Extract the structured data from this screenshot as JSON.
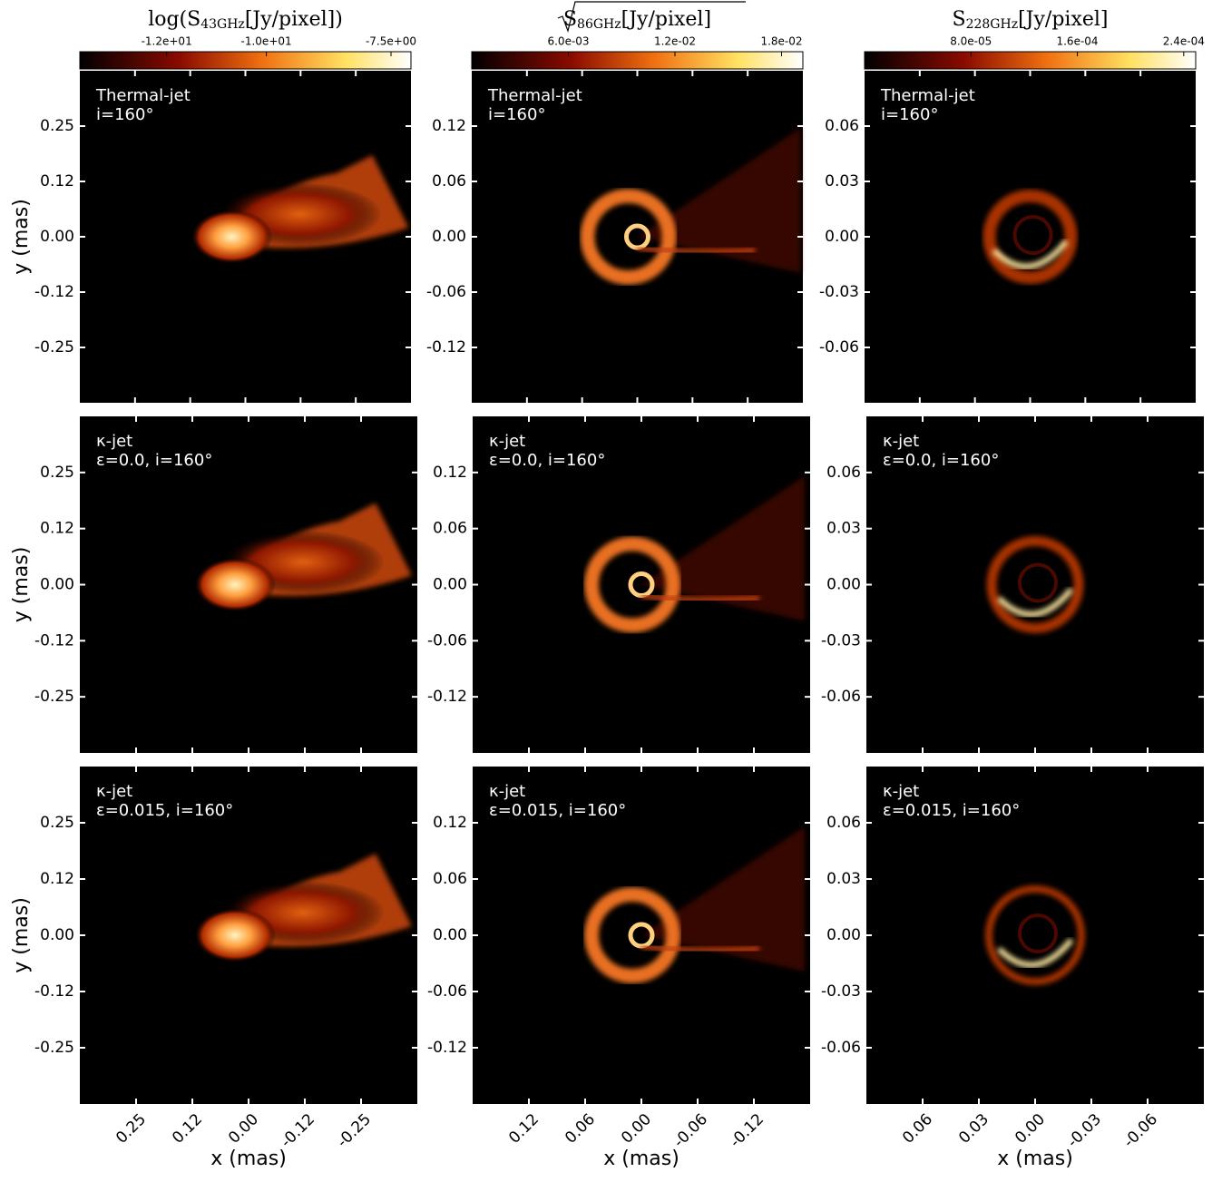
{
  "chart_data": [
    {
      "type": "image",
      "colorbar": {
        "label_main": "log(S",
        "label_sub": "43GHz",
        "label_rest": "[Jy/pixel])",
        "sqrt": false,
        "clim": [
          -13.74,
          -7.1
        ],
        "ticks": [
          {
            "value": -12,
            "label": "-1.2e+01"
          },
          {
            "value": -10,
            "label": "-1.0e+01"
          },
          {
            "value": -7.5,
            "label": "-7.5e+00"
          }
        ]
      },
      "xlim": [
        0.3675,
        -0.3675
      ],
      "ylim": [
        -0.3675,
        0.3675
      ],
      "xticks": [
        {
          "value": 0.245,
          "label": "0.25"
        },
        {
          "value": 0.1225,
          "label": "0.12"
        },
        {
          "value": 0,
          "label": "0.00"
        },
        {
          "value": -0.1225,
          "label": "-0.12"
        },
        {
          "value": -0.245,
          "label": "-0.25"
        }
      ],
      "yticks": [
        {
          "value": 0.245,
          "label": "0.25"
        },
        {
          "value": 0.1225,
          "label": "0.12"
        },
        {
          "value": 0,
          "label": "0.00"
        },
        {
          "value": -0.1225,
          "label": "-0.12"
        },
        {
          "value": -0.245,
          "label": "-0.25"
        }
      ],
      "ylabel": "y (mas)",
      "xlabel": "x (mas)",
      "panels": [
        {
          "annotation": [
            "Thermal-jet",
            " i=160°"
          ]
        },
        {
          "annotation": [
            "κ-jet",
            "ε=0.0, i=160°"
          ]
        },
        {
          "annotation": [
            "κ-jet",
            "ε=0.015, i=160°"
          ]
        }
      ]
    },
    {
      "type": "image",
      "colorbar": {
        "label_main": "S",
        "label_sub": "86GHz",
        "label_rest": "[Jy/pixel]",
        "sqrt": true,
        "clim": [
          0.00056,
          0.0192
        ],
        "ticks": [
          {
            "value": 0.006,
            "label": "6.0e-03"
          },
          {
            "value": 0.012,
            "label": "1.2e-02"
          },
          {
            "value": 0.018,
            "label": "1.8e-02"
          }
        ]
      },
      "xlim": [
        0.18,
        -0.18
      ],
      "ylim": [
        -0.18,
        0.18
      ],
      "xticks": [
        0.12,
        0.06,
        {
          "value": 0,
          "label": "0.00"
        },
        -0.06,
        -0.12
      ],
      "yticks": [
        0.12,
        0.06,
        {
          "value": 0,
          "label": "0.00"
        },
        -0.06,
        -0.12
      ],
      "xlabel": "x (mas)",
      "panels": [
        {
          "annotation": [
            "Thermal-jet",
            "i=160°"
          ]
        },
        {
          "annotation": [
            "κ-jet",
            "ε=0.0, i=160°"
          ]
        },
        {
          "annotation": [
            "κ-jet",
            "ε=0.015, i=160°"
          ]
        }
      ]
    },
    {
      "type": "image",
      "colorbar": {
        "label_main": "S",
        "label_sub": "228GHz",
        "label_rest": "[Jy/pixel]",
        "sqrt": false,
        "clim": [
          0,
          0.000249
        ],
        "ticks": [
          {
            "value": 8e-05,
            "label": "8.0e-05"
          },
          {
            "value": 0.00016,
            "label": "1.6e-04"
          },
          {
            "value": 0.00024,
            "label": "2.4e-04"
          }
        ]
      },
      "xlim": [
        0.09,
        -0.09
      ],
      "ylim": [
        -0.09,
        0.09
      ],
      "xticks": [
        0.06,
        0.03,
        {
          "value": 0,
          "label": "0.00"
        },
        -0.03,
        -0.06
      ],
      "yticks": [
        0.06,
        0.03,
        {
          "value": 0,
          "label": "0.00"
        },
        -0.03,
        -0.06
      ],
      "xlabel": "x (mas)",
      "panels": [
        {
          "annotation": [
            "Thermal-jet",
            "i=160°"
          ]
        },
        {
          "annotation": [
            "κ-jet",
            "ε=0.0, i=160°"
          ]
        },
        {
          "annotation": [
            "κ-jet",
            "ε=0.015, i=160°"
          ]
        }
      ]
    }
  ]
}
